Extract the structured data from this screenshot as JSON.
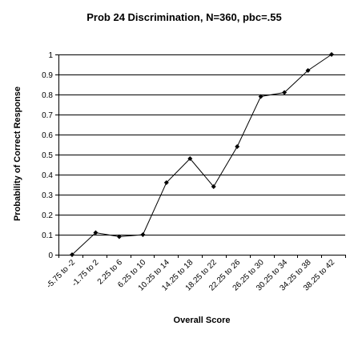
{
  "chart_data": {
    "type": "line",
    "title": "Prob 24 Discrimination, N=360, pbc=.55",
    "xlabel": "Overall Score",
    "ylabel": "Probability of Correct Response",
    "categories": [
      "-5.75 to -2",
      "-1.75 to 2",
      "2.25 to 6",
      "6.25 to 10",
      "10.25 to 14",
      "14.25 to 18",
      "18.25 to 22",
      "22.25 to 26",
      "26.25 to 30",
      "30.25 to 34",
      "34.25 to 38",
      "38.25 to 42"
    ],
    "values": [
      0,
      0.11,
      0.09,
      0.1,
      0.36,
      0.48,
      0.34,
      0.54,
      0.79,
      0.81,
      0.92,
      1.0
    ],
    "ylim": [
      0,
      1
    ],
    "yticks": [
      "0",
      "0.1",
      "0.2",
      "0.3",
      "0.4",
      "0.5",
      "0.6",
      "0.7",
      "0.8",
      "0.9",
      "1"
    ],
    "grid": true,
    "legend": "none",
    "line_color": "#000000",
    "marker": "diamond"
  }
}
